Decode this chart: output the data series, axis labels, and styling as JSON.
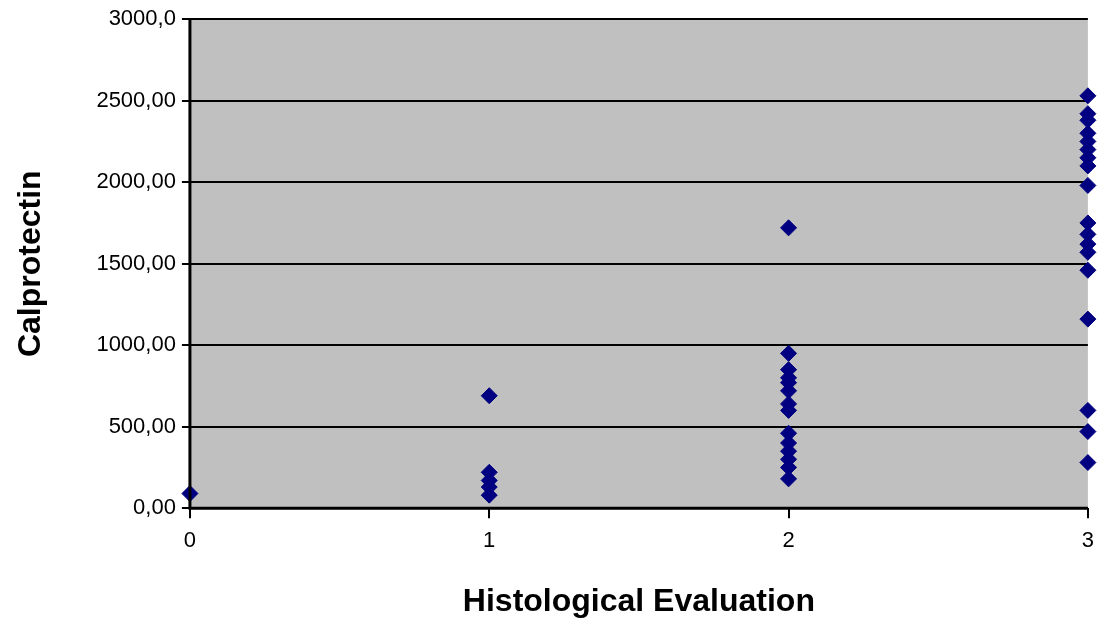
{
  "chart_data": {
    "type": "scatter",
    "xlabel": "Histological Evaluation",
    "ylabel": "Calprotectin",
    "xlim": [
      0,
      3
    ],
    "xticks": [
      0,
      1,
      2,
      3
    ],
    "ylim": [
      0,
      3000
    ],
    "yticks": [
      {
        "value": 0,
        "label": "0,00"
      },
      {
        "value": 500,
        "label": "500,00"
      },
      {
        "value": 1000,
        "label": "1000,00"
      },
      {
        "value": 1500,
        "label": "1500,00"
      },
      {
        "value": 2000,
        "label": "2000,00"
      },
      {
        "value": 2500,
        "label": "2500,00"
      },
      {
        "value": 3000,
        "label": "3000,0"
      }
    ],
    "grid": "y",
    "marker": "diamond",
    "legend": false,
    "series": [
      {
        "color": "#000080",
        "x": [
          0,
          1,
          1,
          1,
          1,
          1,
          2,
          2,
          2,
          2,
          2,
          2,
          2,
          2,
          2,
          2,
          2,
          2,
          2,
          2,
          3,
          3,
          3,
          3,
          3,
          3,
          3,
          3,
          3,
          3,
          3,
          3,
          3,
          3,
          3,
          3,
          3,
          3
        ],
        "values": [
          90,
          690,
          80,
          130,
          170,
          220,
          1720,
          950,
          850,
          800,
          770,
          720,
          640,
          600,
          460,
          400,
          350,
          300,
          250,
          180,
          2530,
          2420,
          2380,
          2300,
          2250,
          2200,
          2150,
          1980,
          1750,
          1680,
          1620,
          1570,
          1460,
          1160,
          600,
          470,
          280,
          2100
        ]
      }
    ]
  }
}
